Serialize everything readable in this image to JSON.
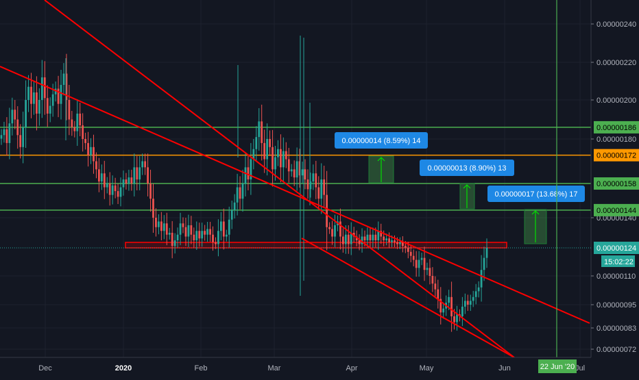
{
  "chart_data": {
    "type": "candlestick",
    "x_axis_labels": [
      "Dec",
      "2020",
      "Feb",
      "Mar",
      "Apr",
      "May",
      "Jun",
      "Jul"
    ],
    "y_axis_ticks": [
      "0.00000240",
      "0.00000220",
      "0.00000200",
      "0.00000180",
      "0.00000140",
      "0.00000110",
      "0.00000095",
      "0.00000083",
      "0.00000072"
    ],
    "ylim": [
      7e-07,
      2.5e-06
    ],
    "horizontal_levels": [
      {
        "value": 1.86e-06,
        "label": "0.00000186",
        "color": "#4caf50"
      },
      {
        "value": 1.72e-06,
        "label": "0.00000172",
        "color": "#ff9800"
      },
      {
        "value": 1.58e-06,
        "label": "0.00000158",
        "color": "#4caf50"
      },
      {
        "value": 1.44e-06,
        "label": "0.00000144",
        "color": "#4caf50"
      }
    ],
    "current_price": {
      "label": "0.00000124",
      "countdown": "15:02:22"
    },
    "measure_callouts": [
      {
        "text": "0.00000014 (8.59%) 14"
      },
      {
        "text": "0.00000013 (8.90%) 13"
      },
      {
        "text": "0.00000017 (13.68%) 17"
      }
    ],
    "date_marker": "22 Jun '20",
    "colors": {
      "up": "#26a69a",
      "down": "#ef5350",
      "channel": "#ff0000",
      "support_box": "#ff0000",
      "callout": "#1e88e5",
      "marker": "#4caf50",
      "background": "#131722"
    },
    "candles_close": [
      1.82e-06,
      1.85e-06,
      1.78e-06,
      1.88e-06,
      1.95e-06,
      1.9e-06,
      1.82e-06,
      1.76e-06,
      1.86e-06,
      2e-06,
      2.07e-06,
      1.98e-06,
      2.04e-06,
      1.93e-06,
      2e-06,
      2.12e-06,
      2.01e-06,
      1.93e-06,
      1.97e-06,
      2.03e-06,
      2.06e-06,
      1.98e-06,
      2.08e-06,
      2.14e-06,
      2e-06,
      1.9e-06,
      1.86e-06,
      1.84e-06,
      1.93e-06,
      1.87e-06,
      1.8e-06,
      1.78e-06,
      1.72e-06,
      1.76e-06,
      1.69e-06,
      1.65e-06,
      1.59e-06,
      1.63e-06,
      1.56e-06,
      1.58e-06,
      1.52e-06,
      1.57e-06,
      1.54e-06,
      1.51e-06,
      1.56e-06,
      1.6e-06,
      1.58e-06,
      1.61e-06,
      1.58e-06,
      1.66e-06,
      1.6e-06,
      1.66e-06,
      1.69e-06,
      1.66e-06,
      1.58e-06,
      1.5e-06,
      1.4e-06,
      1.35e-06,
      1.38e-06,
      1.33e-06,
      1.37e-06,
      1.31e-06,
      1.32e-06,
      1.25e-06,
      1.28e-06,
      1.31e-06,
      1.37e-06,
      1.35e-06,
      1.3e-06,
      1.36e-06,
      1.31e-06,
      1.28e-06,
      1.33e-06,
      1.29e-06,
      1.33e-06,
      1.31e-06,
      1.34e-06,
      1.31e-06,
      1.27e-06,
      1.26e-06,
      1.33e-06,
      1.38e-06,
      1.3e-06,
      1.31e-06,
      1.39e-06,
      1.44e-06,
      1.48e-06,
      1.56e-06,
      1.5e-06,
      1.58e-06,
      1.66e-06,
      1.6e-06,
      1.7e-06,
      1.75e-06,
      1.81e-06,
      1.89e-06,
      1.78e-06,
      1.7e-06,
      1.8e-06,
      1.76e-06,
      1.65e-06,
      1.71e-06,
      1.75e-06,
      1.66e-06,
      1.74e-06,
      1.7e-06,
      1.64e-06,
      1.65e-06,
      1.61e-06,
      1.69e-06,
      1.62e-06,
      1.65e-06,
      1.6e-06,
      1.55e-06,
      1.59e-06,
      1.63e-06,
      1.56e-06,
      1.5e-06,
      1.6e-06,
      1.52e-06,
      1.35e-06,
      1.34e-06,
      1.3e-06,
      1.36e-06,
      1.38e-06,
      1.3e-06,
      1.26e-06,
      1.31e-06,
      1.26e-06,
      1.32e-06,
      1.3e-06,
      1.28e-06,
      1.26e-06,
      1.3e-06,
      1.28e-06,
      1.31e-06,
      1.28e-06,
      1.31e-06,
      1.28e-06,
      1.33e-06,
      1.3e-06,
      1.28e-06,
      1.29e-06,
      1.27e-06,
      1.28e-06,
      1.27e-06,
      1.26e-06,
      1.27e-06,
      1.25e-06,
      1.24e-06,
      1.22e-06,
      1.2e-06,
      1.18e-06,
      1.14e-06,
      1.18e-06,
      1.19e-06,
      1.13e-06,
      1.14e-06,
      1.1e-06,
      1.06e-06,
      1.03e-06,
      9.8e-07,
      9.1e-07,
      9.3e-07,
      9.6e-07,
      9.9e-07,
      8.9e-07,
      8.6e-07,
      9e-07,
      8.9e-07,
      9.4e-07,
      9.7e-07,
      9.5e-07,
      9.7e-07,
      9.9e-07,
      1.02e-06,
      1.04e-06,
      1.13e-06,
      1.19e-06,
      1.24e-06
    ],
    "x_range": {
      "dec_index": 9,
      "days_per_month": 31
    }
  }
}
